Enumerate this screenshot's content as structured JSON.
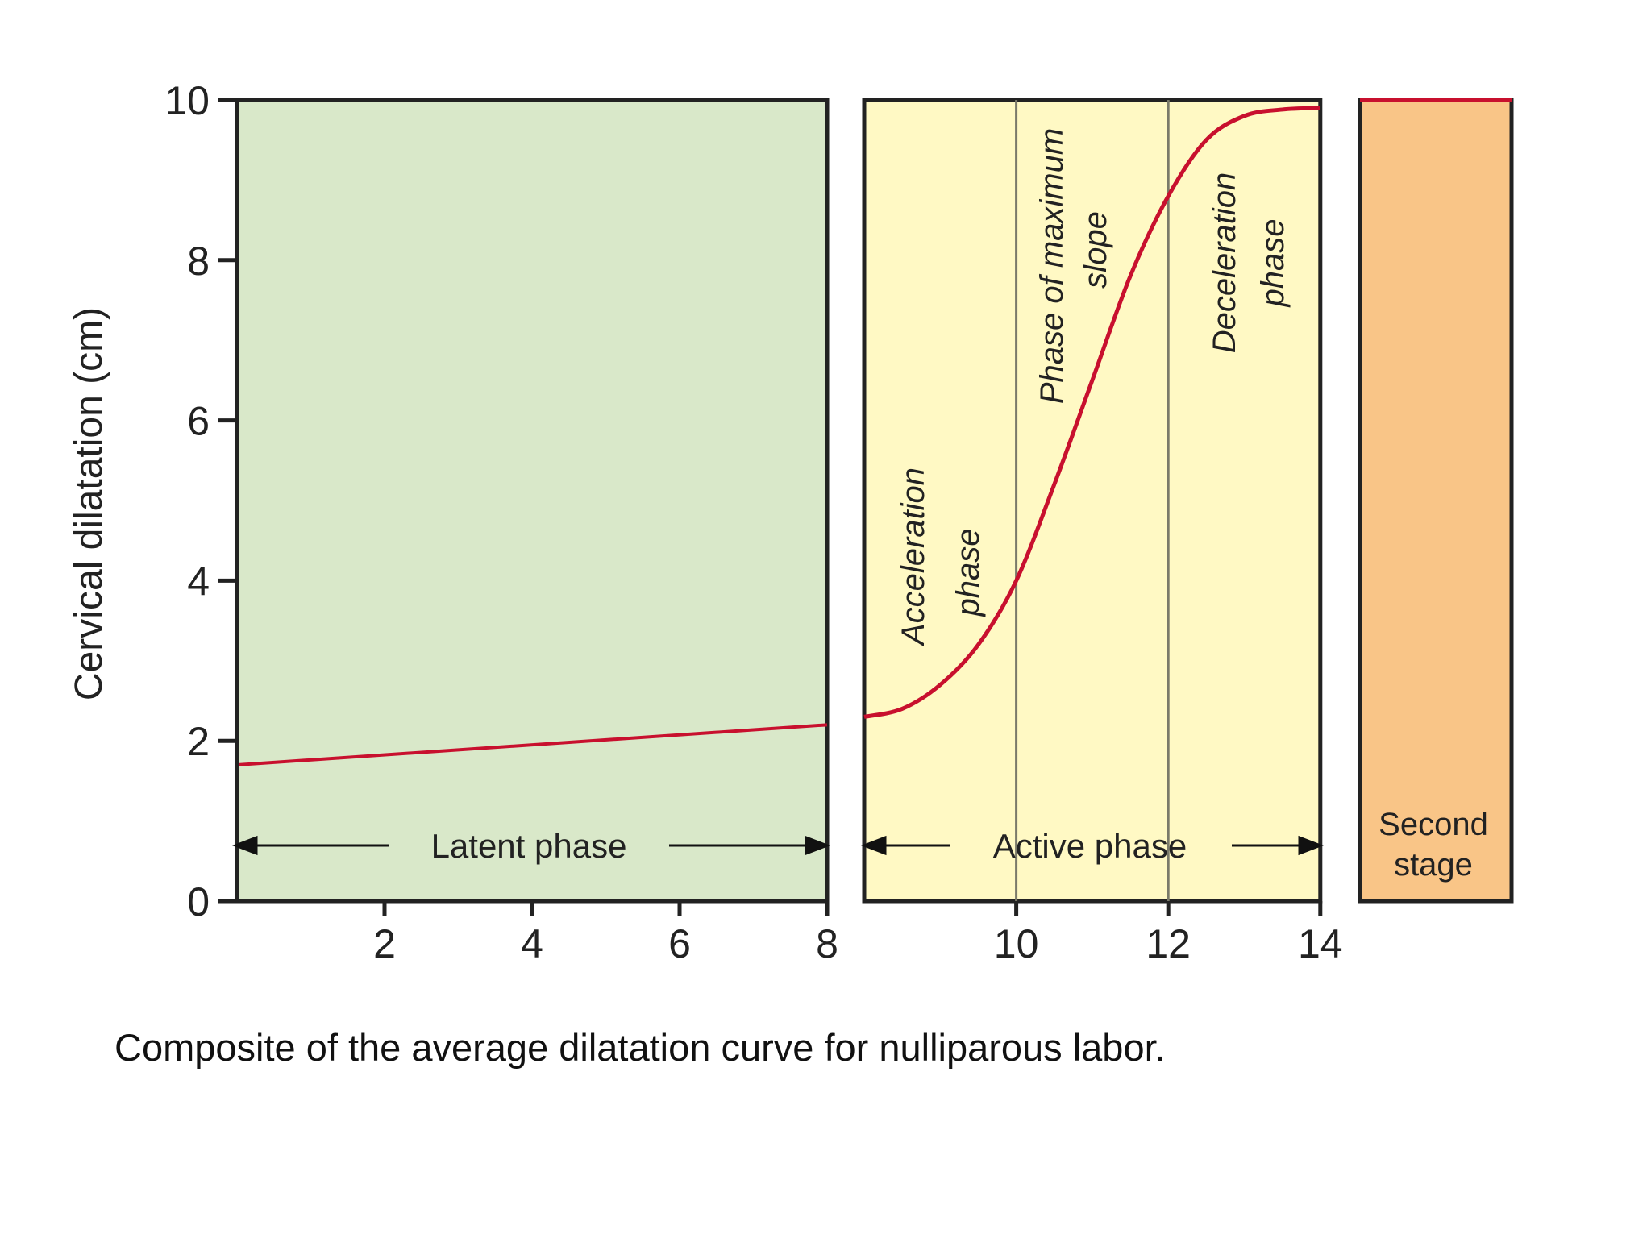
{
  "caption": "Composite of the average dilatation curve for nulliparous labor.",
  "colors": {
    "latent_bg": "#d9e8c9",
    "active_bg": "#fff9c4",
    "second_bg": "#f9c587",
    "curve": "#c8102e",
    "axis": "#222222",
    "divider": "#7a7a6a"
  },
  "chart_data": {
    "type": "line",
    "title": "",
    "xlabel": "",
    "ylabel": "Cervical dilatation (cm)",
    "xlim": [
      0,
      14
    ],
    "ylim": [
      0,
      10
    ],
    "x_ticks": [
      2,
      4,
      6,
      8,
      10,
      12,
      14
    ],
    "y_ticks": [
      0,
      2,
      4,
      6,
      8,
      10
    ],
    "grid": false,
    "panels": [
      {
        "name": "Latent phase",
        "x_range": [
          0,
          8
        ],
        "color": "#d9e8c9"
      },
      {
        "name": "Active phase",
        "x_range": [
          8,
          14
        ],
        "color": "#fff9c4"
      },
      {
        "name": "Second stage",
        "x_range": null,
        "color": "#f9c587"
      }
    ],
    "subphases": [
      {
        "label": "Acceleration phase",
        "x_range": [
          8,
          10
        ]
      },
      {
        "label": "Phase of maximum slope",
        "x_range": [
          10,
          12
        ]
      },
      {
        "label": "Deceleration phase",
        "x_range": [
          12,
          14
        ]
      }
    ],
    "series": [
      {
        "segment": "latent",
        "x": [
          0,
          8
        ],
        "y": [
          1.7,
          2.2
        ]
      },
      {
        "segment": "active",
        "x": [
          8,
          8.5,
          9,
          9.5,
          10,
          10.5,
          11,
          11.5,
          12,
          12.5,
          13,
          13.5,
          14
        ],
        "y": [
          2.3,
          2.4,
          2.7,
          3.2,
          4.0,
          5.2,
          6.5,
          7.8,
          8.8,
          9.5,
          9.8,
          9.88,
          9.9
        ]
      },
      {
        "segment": "second_stage",
        "x": null,
        "y": [
          10,
          10
        ]
      }
    ],
    "annotations": {
      "latent_phase": "Latent phase",
      "active_phase": "Active phase",
      "acceleration_line1": "Acceleration",
      "acceleration_line2": "phase",
      "max_slope_line1": "Phase of maximum",
      "max_slope_line2": "slope",
      "deceleration_line1": "Deceleration",
      "deceleration_line2": "phase",
      "second_stage_line1": "Second",
      "second_stage_line2": "stage"
    }
  }
}
